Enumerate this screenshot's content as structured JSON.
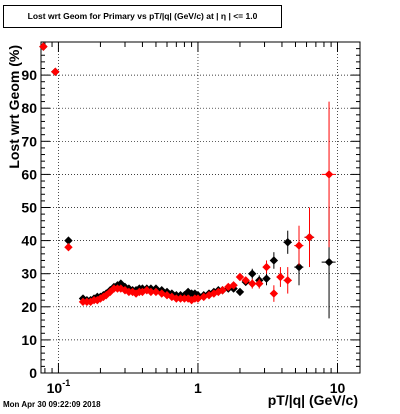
{
  "chart_data": {
    "type": "scatter",
    "title": "Lost wrt Geom for Primary vs pT/|q| (GeV/c) at | η | <= 1.0",
    "xlabel": "pT/|q| (GeV/c)",
    "ylabel": "Lost wrt Geom (%)",
    "xscale": "log",
    "xlim": [
      0.075,
      14.5
    ],
    "ylim": [
      0,
      100
    ],
    "x_tick_labels": [
      {
        "value": 0.1,
        "label": "10",
        "exp": "-1"
      },
      {
        "value": 1,
        "label": "1",
        "exp": ""
      },
      {
        "value": 10,
        "label": "10",
        "exp": ""
      }
    ],
    "y_ticks": [
      0,
      10,
      20,
      30,
      40,
      50,
      60,
      70,
      80,
      90
    ],
    "grid": true,
    "timestamp": "Mon Apr 30 09:22:09 2018",
    "series": [
      {
        "color": "#000000",
        "points": [
          {
            "x": 0.078,
            "y": 98.6,
            "ex": 0.002,
            "ey": 0.5
          },
          {
            "x": 0.095,
            "y": 91.0,
            "ex": 0.006,
            "ey": 0.5
          },
          {
            "x": 0.118,
            "y": 40.0,
            "ex": 0.006,
            "ey": 0.5
          },
          {
            "x": 0.15,
            "y": 22.5
          },
          {
            "x": 0.16,
            "y": 22.0
          },
          {
            "x": 0.17,
            "y": 22.0
          },
          {
            "x": 0.18,
            "y": 22.5
          },
          {
            "x": 0.19,
            "y": 23.0
          },
          {
            "x": 0.2,
            "y": 23.0
          },
          {
            "x": 0.21,
            "y": 23.5
          },
          {
            "x": 0.22,
            "y": 24.0
          },
          {
            "x": 0.235,
            "y": 25.0
          },
          {
            "x": 0.25,
            "y": 26.0
          },
          {
            "x": 0.265,
            "y": 26.5
          },
          {
            "x": 0.28,
            "y": 27.0
          },
          {
            "x": 0.3,
            "y": 26.0
          },
          {
            "x": 0.32,
            "y": 25.5
          },
          {
            "x": 0.34,
            "y": 25.0
          },
          {
            "x": 0.36,
            "y": 25.0
          },
          {
            "x": 0.38,
            "y": 25.5
          },
          {
            "x": 0.4,
            "y": 25.5
          },
          {
            "x": 0.43,
            "y": 25.5
          },
          {
            "x": 0.46,
            "y": 25.5
          },
          {
            "x": 0.5,
            "y": 25.5
          },
          {
            "x": 0.55,
            "y": 25.0
          },
          {
            "x": 0.6,
            "y": 24.5
          },
          {
            "x": 0.65,
            "y": 24.0
          },
          {
            "x": 0.7,
            "y": 23.5
          },
          {
            "x": 0.75,
            "y": 23.5
          },
          {
            "x": 0.8,
            "y": 23.5
          },
          {
            "x": 0.85,
            "y": 24.5
          },
          {
            "x": 0.9,
            "y": 24.0
          },
          {
            "x": 0.95,
            "y": 24.0
          },
          {
            "x": 1.0,
            "y": 23.5
          },
          {
            "x": 1.1,
            "y": 23.5
          },
          {
            "x": 1.2,
            "y": 24.0
          },
          {
            "x": 1.3,
            "y": 24.5
          },
          {
            "x": 1.4,
            "y": 25.0
          },
          {
            "x": 1.5,
            "y": 25.0
          },
          {
            "x": 1.65,
            "y": 25.5
          },
          {
            "x": 1.8,
            "y": 25.5
          },
          {
            "x": 2.0,
            "y": 24.5,
            "ex": 0.1,
            "ey": 1.0
          },
          {
            "x": 2.2,
            "y": 27.5,
            "ex": 0.1,
            "ey": 1.0
          },
          {
            "x": 2.45,
            "y": 30.0,
            "ex": 0.12,
            "ey": 1.5
          },
          {
            "x": 2.75,
            "y": 28.0,
            "ex": 0.15,
            "ey": 1.5
          },
          {
            "x": 3.1,
            "y": 28.5,
            "ex": 0.15,
            "ey": 2.0
          },
          {
            "x": 3.5,
            "y": 34.0,
            "ex": 0.2,
            "ey": 2.5
          },
          {
            "x": 4.4,
            "y": 39.5,
            "ex": 0.3,
            "ey": 3.5
          },
          {
            "x": 5.3,
            "y": 32.0,
            "ex": 0.4,
            "ey": 5.5
          },
          {
            "x": 6.3,
            "y": 41.0,
            "ex": 0.5,
            "ey": 7.0
          },
          {
            "x": 8.7,
            "y": 33.5,
            "ex": 1.0,
            "ey": 17.0
          }
        ]
      },
      {
        "color": "#ff0000",
        "points": [
          {
            "x": 0.078,
            "y": 98.6,
            "ex": 0.002,
            "ey": 0.5
          },
          {
            "x": 0.095,
            "y": 91.0,
            "ex": 0.006,
            "ey": 0.5
          },
          {
            "x": 0.118,
            "y": 38.0,
            "ex": 0.006,
            "ey": 0.5
          },
          {
            "x": 0.15,
            "y": 21.5
          },
          {
            "x": 0.16,
            "y": 21.5
          },
          {
            "x": 0.17,
            "y": 21.5
          },
          {
            "x": 0.18,
            "y": 22.0
          },
          {
            "x": 0.19,
            "y": 22.0
          },
          {
            "x": 0.2,
            "y": 22.5
          },
          {
            "x": 0.21,
            "y": 23.0
          },
          {
            "x": 0.22,
            "y": 23.5
          },
          {
            "x": 0.235,
            "y": 24.5
          },
          {
            "x": 0.25,
            "y": 25.5
          },
          {
            "x": 0.265,
            "y": 25.5
          },
          {
            "x": 0.28,
            "y": 25.5
          },
          {
            "x": 0.3,
            "y": 25.0
          },
          {
            "x": 0.32,
            "y": 24.5
          },
          {
            "x": 0.34,
            "y": 24.5
          },
          {
            "x": 0.36,
            "y": 24.0
          },
          {
            "x": 0.38,
            "y": 24.5
          },
          {
            "x": 0.4,
            "y": 24.5
          },
          {
            "x": 0.43,
            "y": 25.0
          },
          {
            "x": 0.46,
            "y": 24.5
          },
          {
            "x": 0.5,
            "y": 24.5
          },
          {
            "x": 0.55,
            "y": 24.0
          },
          {
            "x": 0.6,
            "y": 23.5
          },
          {
            "x": 0.65,
            "y": 23.0
          },
          {
            "x": 0.7,
            "y": 22.5
          },
          {
            "x": 0.75,
            "y": 22.5
          },
          {
            "x": 0.8,
            "y": 22.5
          },
          {
            "x": 0.85,
            "y": 22.5
          },
          {
            "x": 0.9,
            "y": 22.0
          },
          {
            "x": 0.95,
            "y": 22.5
          },
          {
            "x": 1.0,
            "y": 22.5
          },
          {
            "x": 1.1,
            "y": 23.0
          },
          {
            "x": 1.2,
            "y": 23.5
          },
          {
            "x": 1.3,
            "y": 24.0
          },
          {
            "x": 1.4,
            "y": 24.5
          },
          {
            "x": 1.5,
            "y": 25.0
          },
          {
            "x": 1.65,
            "y": 26.0
          },
          {
            "x": 1.8,
            "y": 26.5
          },
          {
            "x": 2.0,
            "y": 29.0,
            "ex": 0.1,
            "ey": 1.0
          },
          {
            "x": 2.2,
            "y": 28.0,
            "ex": 0.1,
            "ey": 1.0
          },
          {
            "x": 2.45,
            "y": 27.0,
            "ex": 0.12,
            "ey": 1.5
          },
          {
            "x": 2.75,
            "y": 27.0,
            "ex": 0.15,
            "ey": 1.5
          },
          {
            "x": 3.1,
            "y": 32.0,
            "ex": 0.15,
            "ey": 2.0
          },
          {
            "x": 3.5,
            "y": 24.0,
            "ex": 0.2,
            "ey": 2.5
          },
          {
            "x": 3.9,
            "y": 29.0,
            "ex": 0.25,
            "ey": 3.0
          },
          {
            "x": 4.4,
            "y": 28.0,
            "ex": 0.3,
            "ey": 4.0
          },
          {
            "x": 5.3,
            "y": 38.5,
            "ex": 0.4,
            "ey": 6.0
          },
          {
            "x": 6.3,
            "y": 41.0,
            "ex": 0.5,
            "ey": 9.0
          },
          {
            "x": 8.7,
            "y": 60.0,
            "ex": 1.0,
            "ey": 22.0
          }
        ]
      }
    ]
  }
}
